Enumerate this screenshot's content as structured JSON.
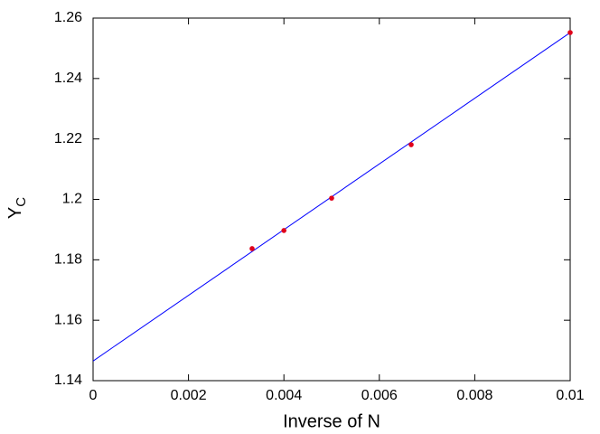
{
  "chart_data": {
    "type": "scatter",
    "xlabel": "Inverse of N",
    "ylabel": {
      "text": "Y",
      "subscript": "C"
    },
    "xlim": [
      0,
      0.01
    ],
    "ylim": [
      1.14,
      1.26
    ],
    "xticks": [
      0,
      0.002,
      0.004,
      0.006,
      0.008,
      0.01
    ],
    "yticks": [
      1.14,
      1.16,
      1.18,
      1.2,
      1.22,
      1.24,
      1.26
    ],
    "grid": false,
    "series": [
      {
        "mode": "markers",
        "color": "#e0001b",
        "x": [
          0.003333,
          0.004,
          0.005,
          0.006667,
          0.01
        ],
        "values": [
          1.1837,
          1.1897,
          1.2004,
          1.2181,
          1.2552
        ]
      },
      {
        "mode": "line",
        "color": "#0000ff",
        "x": [
          0,
          0.01
        ],
        "values": [
          1.1465,
          1.2552
        ]
      }
    ]
  }
}
